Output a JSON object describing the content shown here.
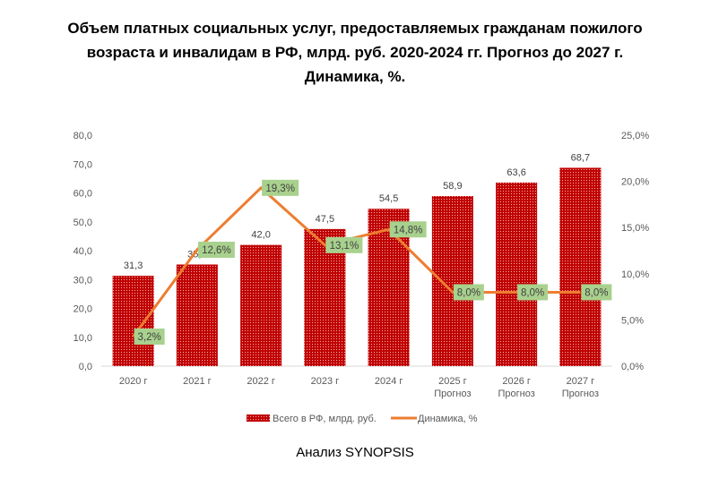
{
  "chart_data": {
    "type": "bar+line",
    "title_lines": [
      "Объем платных социальных услуг, предоставляемых гражданам пожилого",
      "возраста и инвалидам в РФ, млрд. руб. 2020-2024 гг. Прогноз до 2027 г.",
      "Динамика, %."
    ],
    "categories": [
      [
        "2020 г"
      ],
      [
        "2021 г"
      ],
      [
        "2022 г"
      ],
      [
        "2023 г"
      ],
      [
        "2024 г"
      ],
      [
        "2025 г",
        "Прогноз"
      ],
      [
        "2026 г",
        "Прогноз"
      ],
      [
        "2027 г",
        "Прогноз"
      ]
    ],
    "series": [
      {
        "name": "Всего в РФ, млрд. руб.",
        "type": "bar",
        "axis": "left",
        "color": "#c00000",
        "values": [
          31.3,
          35.2,
          42.0,
          47.5,
          54.5,
          58.9,
          63.6,
          68.7
        ],
        "labels": [
          "31,3",
          "35,2",
          "42,0",
          "47,5",
          "54,5",
          "58,9",
          "63,6",
          "68,7"
        ]
      },
      {
        "name": "Динамика, %",
        "type": "line",
        "axis": "right",
        "color": "#ed7d31",
        "values": [
          3.2,
          12.6,
          19.3,
          13.1,
          14.8,
          8.0,
          8.0,
          8.0
        ],
        "labels": [
          "3,2%",
          "12,6%",
          "19,3%",
          "13,1%",
          "14,8%",
          "8,0%",
          "8,0%",
          "8,0%"
        ]
      }
    ],
    "left_axis": {
      "range": [
        0,
        80
      ],
      "ticks": [
        "0,0",
        "10,0",
        "20,0",
        "30,0",
        "40,0",
        "50,0",
        "60,0",
        "70,0",
        "80,0"
      ]
    },
    "right_axis": {
      "range": [
        0,
        25
      ],
      "ticks": [
        "0,0%",
        "5,0%",
        "10,0%",
        "15,0%",
        "20,0%",
        "25,0%"
      ]
    },
    "legend": "bottom",
    "label_bg": "#a9d18e"
  },
  "footer": "Анализ SYNOPSIS"
}
